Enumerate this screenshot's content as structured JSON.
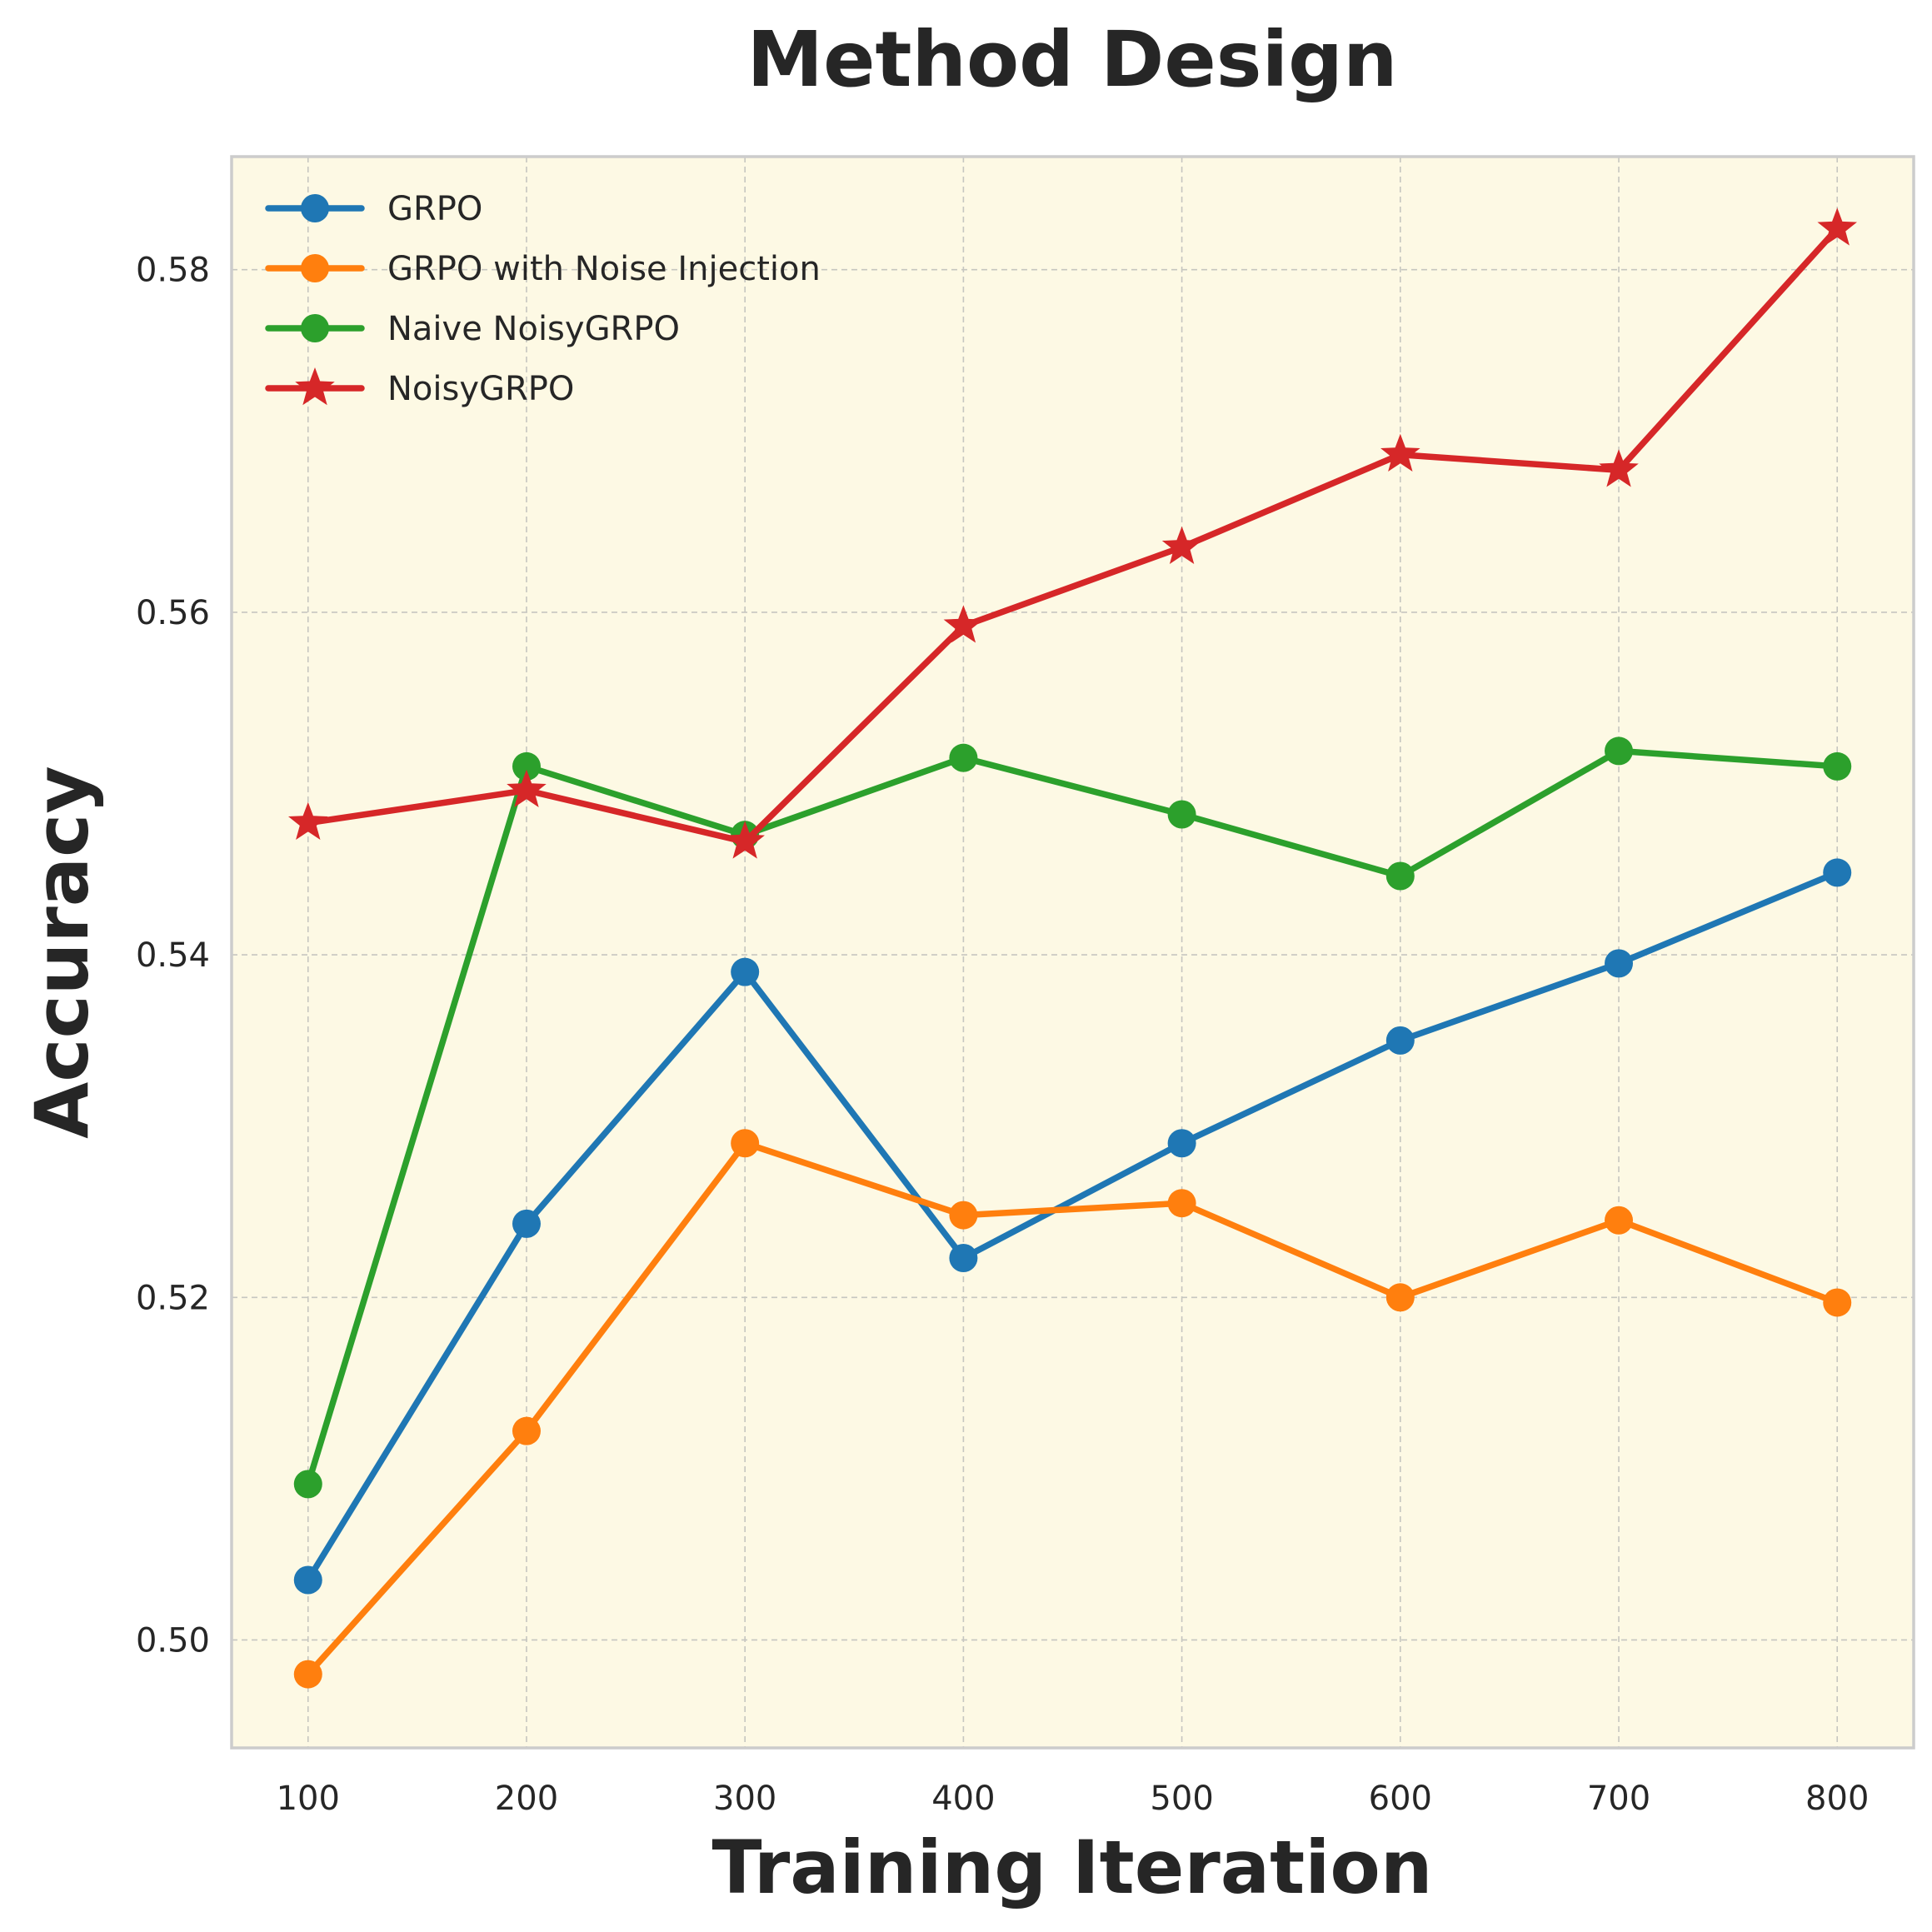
{
  "chart_data": {
    "type": "line",
    "title": "Method Design",
    "xlabel": "Training Iteration",
    "ylabel": "Accuracy",
    "x": [
      100,
      200,
      300,
      400,
      500,
      600,
      700,
      800
    ],
    "xticks": [
      "100",
      "200",
      "300",
      "400",
      "500",
      "600",
      "700",
      "800"
    ],
    "yticks": [
      0.5,
      0.52,
      0.54,
      0.56,
      0.58
    ],
    "ytick_labels": [
      "0.50",
      "0.52",
      "0.54",
      "0.56",
      "0.58"
    ],
    "xlim": [
      65,
      835
    ],
    "ylim": [
      0.4937,
      0.5866
    ],
    "grid": true,
    "legend_position": "top-left",
    "background_color": "#fdf9e4",
    "series": [
      {
        "name": "GRPO",
        "color": "#1f77b4",
        "marker": "circle",
        "values": [
          0.5035,
          0.5243,
          0.539,
          0.5223,
          0.529,
          0.535,
          0.5395,
          0.5448
        ]
      },
      {
        "name": "GRPO with Noise Injection",
        "color": "#ff7f0e",
        "marker": "circle",
        "values": [
          0.498,
          0.5122,
          0.529,
          0.5248,
          0.5255,
          0.52,
          0.5245,
          0.5197
        ]
      },
      {
        "name": "Naive NoisyGRPO",
        "color": "#2ca02c",
        "marker": "circle",
        "values": [
          0.5091,
          0.551,
          0.547,
          0.5515,
          0.5482,
          0.5446,
          0.5519,
          0.551
        ]
      },
      {
        "name": "NoisyGRPO",
        "color": "#d62728",
        "marker": "star",
        "values": [
          0.5477,
          0.5496,
          0.5466,
          0.5592,
          0.5638,
          0.5692,
          0.5683,
          0.5824
        ]
      }
    ]
  }
}
